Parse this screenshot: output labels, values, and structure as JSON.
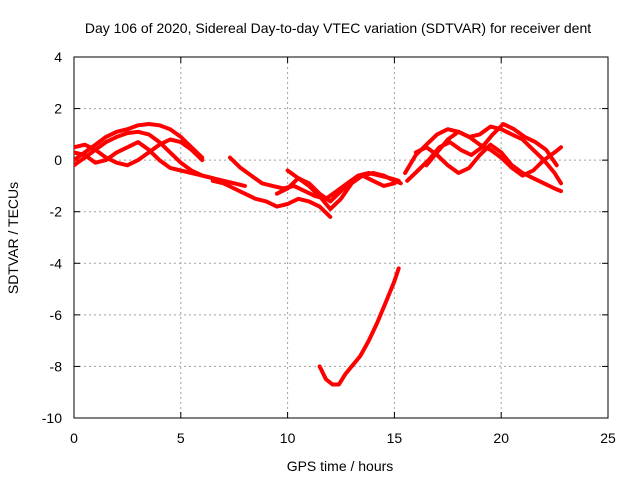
{
  "chart_data": {
    "type": "line",
    "title": "Day 106 of 2020, Sidereal Day-to-day VTEC variation (SDTVAR) for receiver dent",
    "xlabel": "GPS time / hours",
    "ylabel": "SDTVAR / TECUs",
    "xlim": [
      0,
      25
    ],
    "ylim": [
      -10,
      4
    ],
    "xticks": [
      0,
      5,
      10,
      15,
      20,
      25
    ],
    "yticks": [
      4,
      2,
      0,
      -2,
      -4,
      -6,
      -8,
      -10
    ],
    "grid": true,
    "series_color": "#ff0000",
    "series": [
      {
        "name": "trace-1",
        "x": [
          0.0,
          0.5,
          1.0,
          1.5,
          2.0,
          2.5,
          3.0,
          3.5,
          4.0,
          4.5,
          5.0,
          5.5,
          6.0
        ],
        "y": [
          0.0,
          0.3,
          0.6,
          0.9,
          1.1,
          1.2,
          1.35,
          1.4,
          1.35,
          1.2,
          0.9,
          0.5,
          0.1
        ]
      },
      {
        "name": "trace-2",
        "x": [
          0.0,
          0.5,
          1.0,
          1.5,
          2.0,
          2.5,
          3.0,
          3.5,
          4.0,
          4.5,
          5.0,
          5.5,
          6.0,
          6.5
        ],
        "y": [
          -0.2,
          0.1,
          0.4,
          0.7,
          0.9,
          1.05,
          1.1,
          1.0,
          0.7,
          0.3,
          -0.1,
          -0.4,
          -0.6,
          -0.7
        ]
      },
      {
        "name": "trace-3",
        "x": [
          0.0,
          0.5,
          1.0,
          1.5,
          2.0,
          2.5,
          3.0,
          3.5,
          4.0,
          4.5,
          5.0,
          5.5,
          6.0,
          6.5,
          7.0,
          7.5,
          8.0
        ],
        "y": [
          0.3,
          0.2,
          -0.1,
          0.0,
          0.3,
          0.5,
          0.7,
          0.4,
          0.0,
          -0.3,
          -0.4,
          -0.5,
          -0.6,
          -0.7,
          -0.8,
          -0.9,
          -1.0
        ]
      },
      {
        "name": "trace-4",
        "x": [
          0.0,
          0.5,
          1.0,
          1.5,
          2.0,
          2.5,
          3.0,
          3.5,
          4.0,
          4.5,
          5.0,
          5.5,
          6.0
        ],
        "y": [
          0.5,
          0.6,
          0.4,
          0.1,
          -0.1,
          -0.2,
          0.0,
          0.3,
          0.6,
          0.8,
          0.7,
          0.4,
          0.0
        ]
      },
      {
        "name": "trace-5",
        "x": [
          7.3,
          7.8,
          8.3,
          8.8,
          9.3,
          9.8,
          10.3,
          10.8,
          11.3,
          11.8,
          12.3,
          12.8,
          13.3,
          13.8,
          14.3,
          14.8,
          15.2
        ],
        "y": [
          0.1,
          -0.3,
          -0.6,
          -0.9,
          -1.0,
          -1.1,
          -1.0,
          -1.2,
          -1.4,
          -1.5,
          -1.2,
          -0.9,
          -0.6,
          -0.5,
          -0.6,
          -0.7,
          -0.8
        ]
      },
      {
        "name": "trace-6",
        "x": [
          6.5,
          7.0,
          7.5,
          8.0,
          8.5,
          9.0,
          9.5,
          10.0,
          10.5,
          11.0,
          11.5,
          12.0
        ],
        "y": [
          -0.8,
          -0.9,
          -1.1,
          -1.3,
          -1.5,
          -1.6,
          -1.8,
          -1.7,
          -1.5,
          -1.6,
          -1.8,
          -2.2
        ]
      },
      {
        "name": "trace-7",
        "x": [
          9.5,
          10.0,
          10.5,
          11.0,
          11.5,
          12.0,
          12.5,
          13.0,
          13.5,
          14.0,
          14.5,
          15.0
        ],
        "y": [
          -1.3,
          -1.1,
          -0.7,
          -0.9,
          -1.3,
          -1.6,
          -1.2,
          -0.8,
          -0.6,
          -0.8,
          -1.0,
          -0.9
        ]
      },
      {
        "name": "trace-8",
        "x": [
          10.0,
          10.5,
          11.0,
          11.5,
          12.0,
          12.5,
          13.0,
          13.5,
          14.0,
          14.5,
          15.0,
          15.3
        ],
        "y": [
          -0.4,
          -0.7,
          -1.0,
          -1.4,
          -1.9,
          -1.5,
          -0.9,
          -0.6,
          -0.5,
          -0.6,
          -0.8,
          -0.9
        ]
      },
      {
        "name": "trace-9",
        "x": [
          11.5,
          11.8,
          12.1,
          12.4,
          12.7,
          13.0,
          13.4,
          13.8,
          14.2,
          14.6,
          15.0,
          15.2
        ],
        "y": [
          -8.0,
          -8.5,
          -8.7,
          -8.7,
          -8.3,
          -8.0,
          -7.6,
          -7.0,
          -6.3,
          -5.5,
          -4.7,
          -4.2
        ]
      },
      {
        "name": "trace-10",
        "x": [
          15.5,
          16.0,
          16.5,
          17.0,
          17.5,
          18.0,
          18.5,
          19.0,
          19.5,
          20.0,
          20.5,
          21.0,
          21.5,
          22.0,
          22.5,
          22.8
        ],
        "y": [
          -0.5,
          0.2,
          0.6,
          1.0,
          1.2,
          1.1,
          0.9,
          1.0,
          1.3,
          1.2,
          1.0,
          0.8,
          0.4,
          0.0,
          -0.5,
          -0.9
        ]
      },
      {
        "name": "trace-11",
        "x": [
          15.6,
          16.1,
          16.6,
          17.1,
          17.6,
          18.1,
          18.6,
          19.1,
          19.6,
          20.1,
          20.6,
          21.1,
          21.6,
          22.1,
          22.6
        ],
        "y": [
          -0.8,
          -0.4,
          0.0,
          0.5,
          0.7,
          0.4,
          0.2,
          0.5,
          1.0,
          1.4,
          1.2,
          0.9,
          0.7,
          0.4,
          -0.2
        ]
      },
      {
        "name": "trace-12",
        "x": [
          16.0,
          16.5,
          17.0,
          17.5,
          18.0,
          18.5,
          19.0,
          19.5,
          20.0,
          20.5,
          21.0,
          21.5,
          22.0,
          22.5,
          22.8
        ],
        "y": [
          0.3,
          0.5,
          0.2,
          -0.2,
          -0.5,
          -0.3,
          0.2,
          0.6,
          0.3,
          -0.2,
          -0.5,
          -0.7,
          -0.9,
          -1.1,
          -1.2
        ]
      },
      {
        "name": "trace-13",
        "x": [
          16.5,
          17.0,
          17.5,
          18.0,
          18.5,
          19.0,
          19.5,
          20.0,
          20.5,
          21.0,
          21.5,
          22.0,
          22.5,
          22.8
        ],
        "y": [
          -0.2,
          0.3,
          0.8,
          1.1,
          0.9,
          0.6,
          0.4,
          0.1,
          -0.3,
          -0.6,
          -0.4,
          0.0,
          0.3,
          0.5
        ]
      }
    ]
  }
}
